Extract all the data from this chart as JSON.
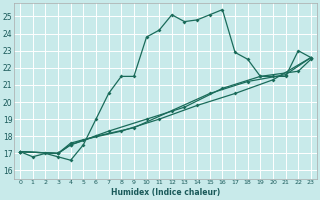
{
  "title": "",
  "xlabel": "Humidex (Indice chaleur)",
  "background_color": "#c8eaea",
  "grid_color": "#ffffff",
  "line_color": "#1a6b5a",
  "xlim": [
    -0.5,
    23.5
  ],
  "ylim": [
    15.5,
    25.8
  ],
  "yticks": [
    16,
    17,
    18,
    19,
    20,
    21,
    22,
    23,
    24,
    25
  ],
  "xticks": [
    0,
    1,
    2,
    3,
    4,
    5,
    6,
    7,
    8,
    9,
    10,
    11,
    12,
    13,
    14,
    15,
    16,
    17,
    18,
    19,
    20,
    21,
    22,
    23
  ],
  "series1": [
    [
      0,
      17.1
    ],
    [
      1,
      16.8
    ],
    [
      2,
      17.0
    ],
    [
      3,
      16.8
    ],
    [
      4,
      16.6
    ],
    [
      5,
      17.5
    ],
    [
      6,
      19.0
    ],
    [
      7,
      20.5
    ],
    [
      8,
      21.5
    ],
    [
      9,
      21.5
    ],
    [
      10,
      23.8
    ],
    [
      11,
      24.2
    ],
    [
      12,
      25.1
    ],
    [
      13,
      24.7
    ],
    [
      14,
      24.8
    ],
    [
      15,
      25.1
    ],
    [
      16,
      25.4
    ],
    [
      17,
      22.9
    ],
    [
      18,
      22.5
    ],
    [
      19,
      21.5
    ],
    [
      20,
      21.5
    ],
    [
      21,
      21.5
    ],
    [
      22,
      23.0
    ],
    [
      23,
      22.6
    ]
  ],
  "series2": [
    [
      0,
      17.1
    ],
    [
      3,
      17.0
    ],
    [
      4,
      17.6
    ],
    [
      5,
      17.8
    ],
    [
      8,
      18.3
    ],
    [
      11,
      19.0
    ],
    [
      14,
      19.8
    ],
    [
      17,
      20.5
    ],
    [
      20,
      21.3
    ],
    [
      23,
      22.6
    ]
  ],
  "series3": [
    [
      0,
      17.1
    ],
    [
      3,
      17.0
    ],
    [
      4,
      17.5
    ],
    [
      6,
      18.0
    ],
    [
      9,
      18.5
    ],
    [
      12,
      19.5
    ],
    [
      15,
      20.5
    ],
    [
      18,
      21.2
    ],
    [
      21,
      21.6
    ],
    [
      23,
      22.6
    ]
  ],
  "series4": [
    [
      0,
      17.1
    ],
    [
      3,
      17.0
    ],
    [
      4,
      17.5
    ],
    [
      7,
      18.3
    ],
    [
      10,
      19.0
    ],
    [
      13,
      19.7
    ],
    [
      16,
      20.8
    ],
    [
      19,
      21.5
    ],
    [
      22,
      21.8
    ],
    [
      23,
      22.5
    ]
  ]
}
